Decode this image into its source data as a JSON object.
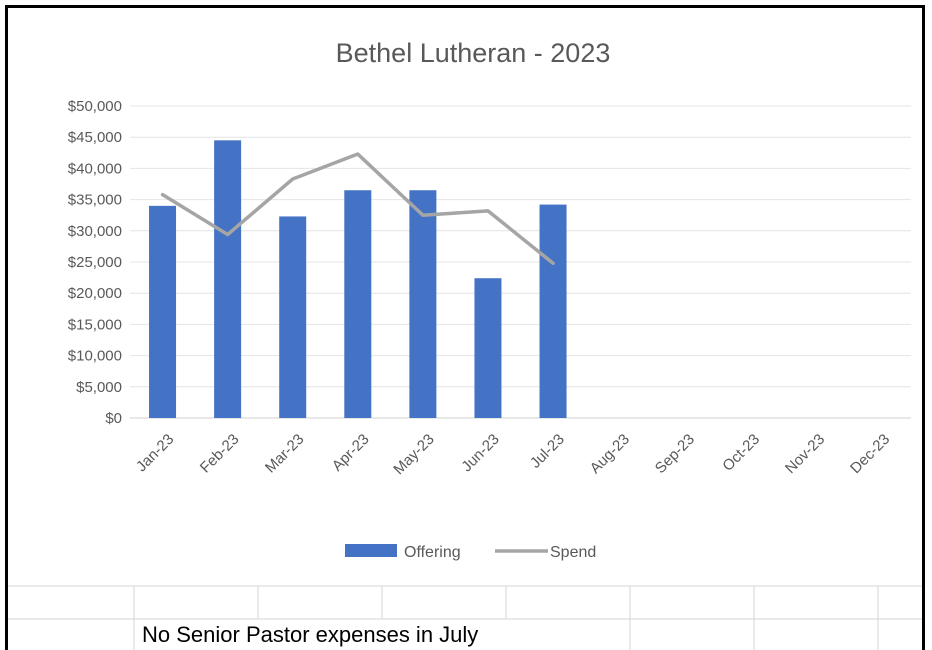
{
  "chart_data": {
    "type": "bar",
    "title": "Bethel Lutheran - 2023",
    "categories": [
      "Jan-23",
      "Feb-23",
      "Mar-23",
      "Apr-23",
      "May-23",
      "Jun-23",
      "Jul-23",
      "Aug-23",
      "Sep-23",
      "Oct-23",
      "Nov-23",
      "Dec-23"
    ],
    "series": [
      {
        "name": "Offering",
        "type": "bar",
        "color": "#4472C4",
        "values": [
          34000,
          44500,
          32300,
          36500,
          36500,
          22400,
          34200,
          null,
          null,
          null,
          null,
          null
        ]
      },
      {
        "name": "Spend",
        "type": "line",
        "color": "#A5A5A5",
        "values": [
          35800,
          29400,
          38300,
          42300,
          32500,
          33200,
          24800,
          null,
          null,
          null,
          null,
          null
        ]
      }
    ],
    "ylim": [
      0,
      50000
    ],
    "yticks": [
      0,
      5000,
      10000,
      15000,
      20000,
      25000,
      30000,
      35000,
      40000,
      45000,
      50000
    ],
    "ytick_labels": [
      "$0",
      "$5,000",
      "$10,000",
      "$15,000",
      "$20,000",
      "$25,000",
      "$30,000",
      "$35,000",
      "$40,000",
      "$45,000",
      "$50,000"
    ],
    "grid": true,
    "legend_position": "bottom"
  },
  "sheet": {
    "note": "No Senior Pastor expenses in July"
  }
}
